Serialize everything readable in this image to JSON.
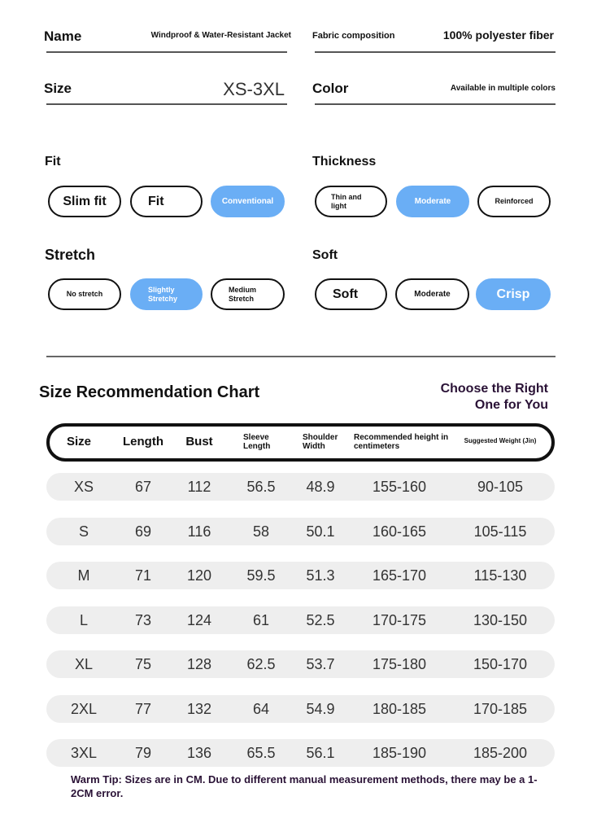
{
  "specs": {
    "name_label": "Name",
    "name_value": "Windproof & Water-Resistant Jacket",
    "fabric_label": "Fabric composition",
    "fabric_value": "100% polyester fiber",
    "size_label": "Size",
    "size_value": "XS-3XL",
    "color_label": "Color",
    "color_value": "Available in multiple colors"
  },
  "attributes": {
    "fit": {
      "label": "Fit",
      "options": [
        "Slim fit",
        "Fit",
        "Conventional"
      ],
      "selected": "Conventional"
    },
    "thickness": {
      "label": "Thickness",
      "options": [
        "Thin and light",
        "Moderate",
        "Reinforced"
      ],
      "selected": "Moderate"
    },
    "stretch": {
      "label": "Stretch",
      "options": [
        "No stretch",
        "Slightly Stretchy",
        "Medium Stretch"
      ],
      "selected": "Slightly Stretchy"
    },
    "soft": {
      "label": "Soft",
      "options": [
        "Soft",
        "Moderate",
        "Crisp"
      ],
      "selected": "Crisp"
    },
    "accent_color": "#6aaef5"
  },
  "chart": {
    "title": "Size Recommendation Chart",
    "tagline_1": "Choose the Right",
    "tagline_2": "One for You",
    "columns": [
      "Size",
      "Length",
      "Bust",
      "Sleeve Length",
      "Shoulder Width",
      "Recommended height in centimeters",
      "Suggested Weight (Jin)"
    ],
    "rows": [
      [
        "XS",
        "67",
        "112",
        "56.5",
        "48.9",
        "155-160",
        "90-105"
      ],
      [
        "S",
        "69",
        "116",
        "58",
        "50.1",
        "160-165",
        "105-115"
      ],
      [
        "M",
        "71",
        "120",
        "59.5",
        "51.3",
        "165-170",
        "115-130"
      ],
      [
        "L",
        "73",
        "124",
        "61",
        "52.5",
        "170-175",
        "130-150"
      ],
      [
        "XL",
        "75",
        "128",
        "62.5",
        "53.7",
        "175-180",
        "150-170"
      ],
      [
        "2XL",
        "77",
        "132",
        "64",
        "54.9",
        "180-185",
        "170-185"
      ],
      [
        "3XL",
        "79",
        "136",
        "65.5",
        "56.1",
        "185-190",
        "185-200"
      ]
    ],
    "tip": "Warm Tip: Sizes are in CM. Due to different manual measurement methods, there may be a 1-2CM error."
  }
}
